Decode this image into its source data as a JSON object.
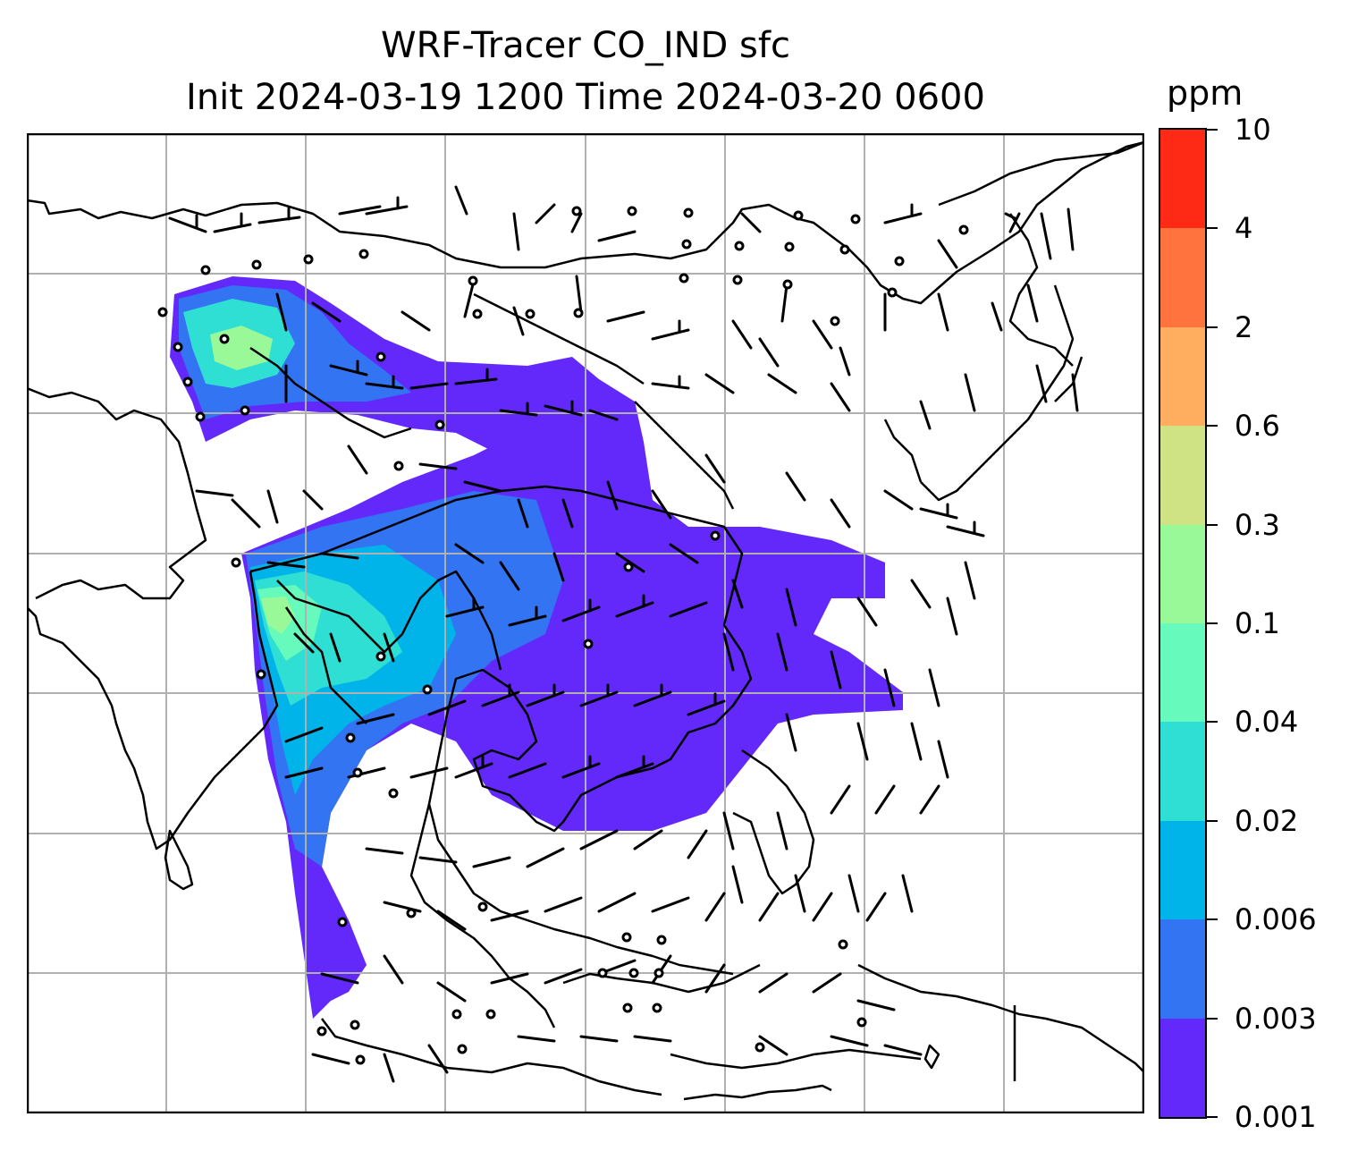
{
  "title": {
    "line1": "WRF-Tracer CO_IND sfc",
    "line2": "Init 2024-03-19 1200 Time 2024-03-20 0600"
  },
  "colorbar": {
    "units": "ppm",
    "levels": [
      "0.001",
      "0.003",
      "0.006",
      "0.02",
      "0.04",
      "0.1",
      "0.3",
      "0.6",
      "2",
      "4",
      "10"
    ],
    "colors": [
      "#6329fb",
      "#3274f2",
      "#00b4ea",
      "#2fdfd3",
      "#66fbbc",
      "#99f999",
      "#cfe385",
      "#ffad5f",
      "#ff733f",
      "#ff2a15"
    ]
  },
  "map": {
    "domain": "South and Southeast Asia",
    "gridlines": true,
    "overlay": "wind barbs",
    "colors": {
      "coastline": "#000000",
      "grid": "#b0b0b0",
      "barb": "#000000"
    }
  }
}
